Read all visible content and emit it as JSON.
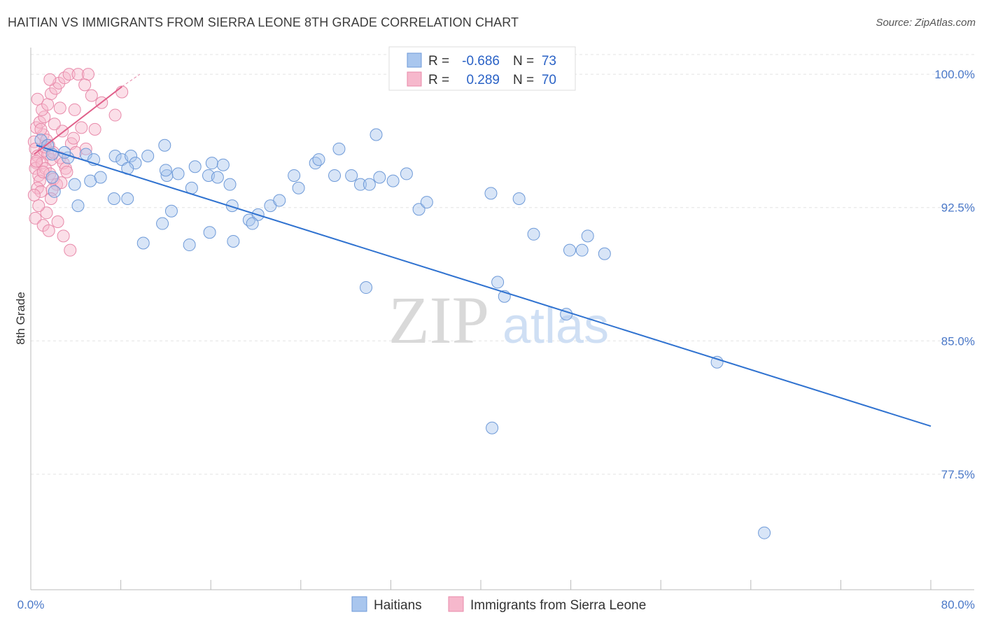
{
  "title": "HAITIAN VS IMMIGRANTS FROM SIERRA LEONE 8TH GRADE CORRELATION CHART",
  "source": "Source: ZipAtlas.com",
  "watermark": {
    "zip": "ZIP",
    "atlas": "atlas"
  },
  "colors": {
    "blue_fill": "#a9c6ee",
    "blue_stroke": "#6e9ad8",
    "blue_line": "#2f72d0",
    "pink_fill": "#f6b8cc",
    "pink_stroke": "#e88aaa",
    "pink_line": "#e0608a",
    "grid": "#e3e3e3",
    "tick_text": "#4a78c8"
  },
  "chart_data": {
    "type": "scatter",
    "title": "HAITIAN VS IMMIGRANTS FROM SIERRA LEONE 8TH GRADE CORRELATION CHART",
    "xlabel": "",
    "ylabel": "8th Grade",
    "xlim": [
      0,
      80
    ],
    "ylim": [
      71,
      101.5
    ],
    "x_tick_labels": [
      "0.0%",
      "80.0%"
    ],
    "y_ticks": [
      77.5,
      85.0,
      92.5,
      100.0
    ],
    "y_tick_labels": [
      "77.5%",
      "85.0%",
      "92.5%",
      "100.0%"
    ],
    "legend": [
      {
        "label": "R =",
        "r": "-0.686",
        "n_label": "N =",
        "n": "73"
      },
      {
        "label": "R =",
        "r": "0.289",
        "n_label": "N =",
        "n": "70"
      }
    ],
    "series": [
      {
        "name": "Haitians",
        "color": "#a9c6ee",
        "trend": {
          "x": [
            0.5,
            80
          ],
          "y": [
            96.0,
            80.2
          ]
        },
        "points": [
          [
            0.9,
            96.3
          ],
          [
            1.5,
            96.0
          ],
          [
            1.9,
            95.5
          ],
          [
            3.3,
            95.3
          ],
          [
            3.0,
            95.6
          ],
          [
            4.9,
            95.5
          ],
          [
            5.6,
            95.2
          ],
          [
            7.5,
            95.4
          ],
          [
            8.1,
            95.2
          ],
          [
            8.9,
            95.4
          ],
          [
            9.3,
            95.0
          ],
          [
            8.6,
            94.7
          ],
          [
            11.9,
            96.0
          ],
          [
            12.1,
            94.3
          ],
          [
            10.4,
            95.4
          ],
          [
            12.0,
            94.6
          ],
          [
            13.1,
            94.4
          ],
          [
            14.3,
            93.6
          ],
          [
            15.8,
            94.3
          ],
          [
            16.6,
            94.2
          ],
          [
            14.6,
            94.8
          ],
          [
            16.1,
            95.0
          ],
          [
            17.1,
            94.9
          ],
          [
            17.7,
            93.8
          ],
          [
            17.9,
            92.6
          ],
          [
            19.4,
            91.8
          ],
          [
            20.2,
            92.1
          ],
          [
            21.3,
            92.6
          ],
          [
            22.1,
            92.9
          ],
          [
            23.4,
            94.3
          ],
          [
            25.3,
            95.0
          ],
          [
            27.0,
            94.3
          ],
          [
            25.6,
            95.2
          ],
          [
            27.4,
            95.8
          ],
          [
            28.5,
            94.3
          ],
          [
            29.3,
            93.8
          ],
          [
            30.1,
            93.8
          ],
          [
            30.7,
            96.6
          ],
          [
            32.2,
            94.0
          ],
          [
            31.0,
            94.2
          ],
          [
            33.4,
            94.4
          ],
          [
            34.5,
            92.4
          ],
          [
            35.2,
            92.8
          ],
          [
            29.8,
            88.0
          ],
          [
            40.9,
            93.3
          ],
          [
            43.4,
            93.0
          ],
          [
            44.7,
            91.0
          ],
          [
            41.5,
            88.3
          ],
          [
            42.1,
            87.5
          ],
          [
            47.9,
            90.1
          ],
          [
            49.0,
            90.1
          ],
          [
            51.0,
            89.9
          ],
          [
            49.5,
            90.9
          ],
          [
            43.5,
            100.0
          ],
          [
            41.0,
            80.1
          ],
          [
            47.6,
            86.5
          ],
          [
            61.0,
            83.8
          ],
          [
            65.2,
            74.2
          ],
          [
            3.9,
            93.8
          ],
          [
            2.1,
            93.4
          ],
          [
            1.9,
            94.2
          ],
          [
            4.2,
            92.6
          ],
          [
            7.4,
            93.0
          ],
          [
            8.6,
            93.0
          ],
          [
            10.0,
            90.5
          ],
          [
            11.7,
            91.6
          ],
          [
            12.5,
            92.3
          ],
          [
            14.1,
            90.4
          ],
          [
            15.9,
            91.1
          ],
          [
            18.0,
            90.6
          ],
          [
            19.7,
            91.6
          ],
          [
            23.8,
            93.6
          ],
          [
            5.3,
            94.0
          ],
          [
            6.2,
            94.2
          ]
        ]
      },
      {
        "name": "Immigrants from Sierra Leone",
        "color": "#f6b8cc",
        "trend": {
          "x": [
            0.3,
            8.1
          ],
          "y": [
            95.5,
            99.3
          ]
        },
        "trend_ext": {
          "x": [
            8.1,
            9.7
          ],
          "y": [
            99.3,
            100.0
          ]
        },
        "points": [
          [
            0.3,
            96.2
          ],
          [
            0.4,
            95.8
          ],
          [
            0.6,
            95.4
          ],
          [
            0.5,
            95.0
          ],
          [
            0.4,
            94.7
          ],
          [
            0.7,
            94.3
          ],
          [
            0.8,
            94.0
          ],
          [
            0.6,
            93.6
          ],
          [
            0.9,
            93.4
          ],
          [
            1.1,
            96.6
          ],
          [
            1.4,
            96.3
          ],
          [
            1.6,
            96.0
          ],
          [
            1.2,
            95.7
          ],
          [
            1.5,
            95.5
          ],
          [
            1.8,
            95.2
          ],
          [
            1.0,
            95.0
          ],
          [
            1.3,
            94.7
          ],
          [
            1.7,
            94.4
          ],
          [
            2.0,
            94.1
          ],
          [
            2.3,
            93.8
          ],
          [
            1.9,
            93.5
          ],
          [
            2.6,
            95.3
          ],
          [
            2.9,
            95.0
          ],
          [
            3.1,
            94.7
          ],
          [
            0.5,
            97.0
          ],
          [
            0.8,
            97.3
          ],
          [
            1.2,
            97.6
          ],
          [
            1.0,
            98.0
          ],
          [
            1.5,
            98.3
          ],
          [
            0.6,
            98.6
          ],
          [
            1.8,
            98.9
          ],
          [
            2.2,
            99.2
          ],
          [
            2.5,
            99.5
          ],
          [
            3.0,
            99.8
          ],
          [
            3.4,
            100.0
          ],
          [
            4.2,
            100.0
          ],
          [
            5.1,
            100.0
          ],
          [
            4.8,
            99.4
          ],
          [
            5.4,
            98.8
          ],
          [
            6.3,
            98.4
          ],
          [
            7.5,
            97.7
          ],
          [
            8.1,
            99.0
          ],
          [
            2.8,
            96.8
          ],
          [
            3.6,
            96.1
          ],
          [
            4.0,
            95.6
          ],
          [
            0.4,
            91.9
          ],
          [
            1.1,
            91.5
          ],
          [
            1.6,
            91.2
          ],
          [
            2.4,
            91.7
          ],
          [
            2.9,
            90.9
          ],
          [
            3.5,
            90.1
          ],
          [
            1.4,
            92.2
          ],
          [
            0.7,
            92.6
          ],
          [
            1.8,
            93.0
          ],
          [
            2.7,
            93.9
          ],
          [
            3.2,
            94.5
          ],
          [
            0.9,
            96.9
          ],
          [
            2.1,
            97.2
          ],
          [
            3.8,
            96.4
          ],
          [
            1.3,
            95.9
          ],
          [
            0.5,
            95.1
          ],
          [
            2.0,
            95.6
          ],
          [
            1.1,
            94.5
          ],
          [
            0.3,
            93.2
          ],
          [
            4.5,
            97.0
          ],
          [
            3.9,
            98.0
          ],
          [
            2.6,
            98.1
          ],
          [
            1.7,
            99.7
          ],
          [
            4.9,
            95.8
          ],
          [
            5.7,
            96.9
          ]
        ]
      }
    ]
  },
  "bottom_legend": [
    {
      "label": "Haitians",
      "color": "#a9c6ee"
    },
    {
      "label": "Immigrants from Sierra Leone",
      "color": "#f6b8cc"
    }
  ]
}
